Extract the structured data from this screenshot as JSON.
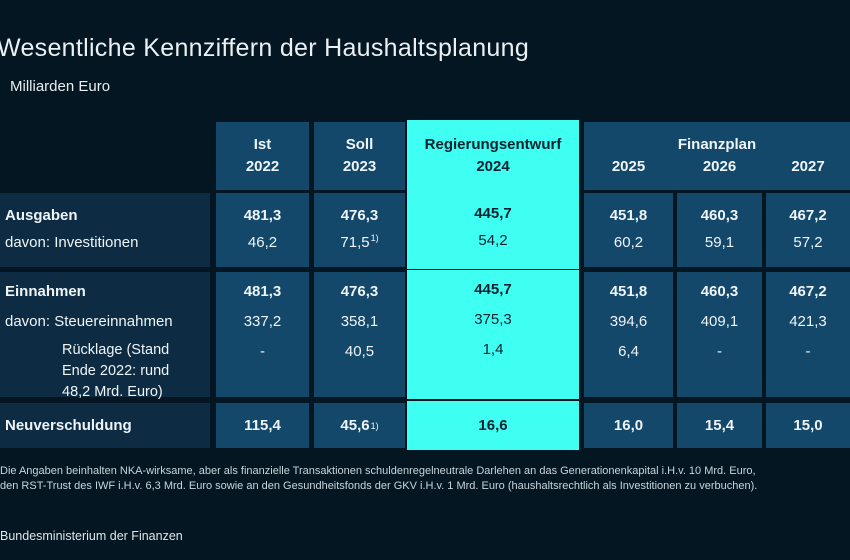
{
  "page": {
    "title": "Wesentliche Kennziffern der Haushaltsplanung",
    "subtitle": "Milliarden Euro",
    "footnote_line1": "Die Angaben beinhalten NKA-wirksame, aber als finanzielle Transaktionen schuldenregelneutrale Darlehen an das Generationenkapital i.H.v. 10 Mrd. Euro,",
    "footnote_line2": "den RST-Trust des IWF i.H.v. 6,3 Mrd. Euro sowie an den Gesundheitsfonds der GKV i.H.v. 1 Mrd. Euro (haushaltsrechtlich als Investitionen zu verbuchen).",
    "footer": "Bundesministerium der Finanzen"
  },
  "colors": {
    "background": "#031621",
    "cell_panel": "#13486B",
    "label_panel": "#0D2C43",
    "highlight_cyan": "#3FFFF2",
    "text_light": "#EFF4F7",
    "text_dark_on_cyan": "#082230"
  },
  "header": {
    "ist": "Ist",
    "y2022": "2022",
    "soll": "Soll",
    "y2023": "2023",
    "entwurf": "Regierungsentwurf",
    "y2024": "2024",
    "finanzplan": "Finanzplan",
    "y2025": "2025",
    "y2026": "2026",
    "y2027": "2027"
  },
  "table": {
    "blocks": [
      {
        "label_main": "Ausgaben",
        "label_sub": "davon: Investitionen",
        "cells": [
          {
            "main": "481,3",
            "sub": "46,2"
          },
          {
            "main": "476,3",
            "sub": "71,5",
            "sub_sup": "1)"
          },
          {
            "main": "445,7",
            "sub": "54,2"
          },
          {
            "main": "451,8",
            "sub": "60,2"
          },
          {
            "main": "460,3",
            "sub": "59,1"
          },
          {
            "main": "467,2",
            "sub": "57,2"
          }
        ]
      },
      {
        "label_main": "Einnahmen",
        "label_sub": "davon: Steuereinnahmen",
        "label_sub2": "Rücklage (Stand\nEnde 2022: rund\n48,2 Mrd. Euro)",
        "cells": [
          {
            "main": "481,3",
            "sub": "337,2",
            "sub2": "-"
          },
          {
            "main": "476,3",
            "sub": "358,1",
            "sub2": "40,5"
          },
          {
            "main": "445,7",
            "sub": "375,3",
            "sub2": "1,4"
          },
          {
            "main": "451,8",
            "sub": "394,6",
            "sub2": "6,4"
          },
          {
            "main": "460,3",
            "sub": "409,1",
            "sub2": "-"
          },
          {
            "main": "467,2",
            "sub": "421,3",
            "sub2": "-"
          }
        ]
      },
      {
        "label_main": "Neuverschuldung",
        "cells": [
          {
            "main": "115,4"
          },
          {
            "main": "45,6",
            "main_sup": "1)"
          },
          {
            "main": "16,6"
          },
          {
            "main": "16,0"
          },
          {
            "main": "15,4"
          },
          {
            "main": "15,0"
          }
        ]
      }
    ]
  },
  "chart_data": {
    "type": "table",
    "title": "Wesentliche Kennziffern der Haushaltsplanung",
    "unit": "Milliarden Euro",
    "columns": [
      "Ist 2022",
      "Soll 2023",
      "Regierungsentwurf 2024",
      "Finanzplan 2025",
      "Finanzplan 2026",
      "Finanzplan 2027"
    ],
    "highlighted_column": "Regierungsentwurf 2024",
    "rows": [
      {
        "label": "Ausgaben",
        "values": [
          "481,3",
          "476,3",
          "445,7",
          "451,8",
          "460,3",
          "467,2"
        ]
      },
      {
        "label": "davon: Investitionen",
        "values": [
          "46,2",
          "71,5 1)",
          "54,2",
          "60,2",
          "59,1",
          "57,2"
        ]
      },
      {
        "label": "Einnahmen",
        "values": [
          "481,3",
          "476,3",
          "445,7",
          "451,8",
          "460,3",
          "467,2"
        ]
      },
      {
        "label": "davon: Steuereinnahmen",
        "values": [
          "337,2",
          "358,1",
          "375,3",
          "394,6",
          "409,1",
          "421,3"
        ]
      },
      {
        "label": "Rücklage (Stand Ende 2022: rund 48,2 Mrd. Euro)",
        "values": [
          "-",
          "40,5",
          "1,4",
          "6,4",
          "-",
          "-"
        ]
      },
      {
        "label": "Neuverschuldung",
        "values": [
          "115,4",
          "45,6 1)",
          "16,6",
          "16,0",
          "15,4",
          "15,0"
        ]
      }
    ],
    "footnote_marker": "1)"
  }
}
